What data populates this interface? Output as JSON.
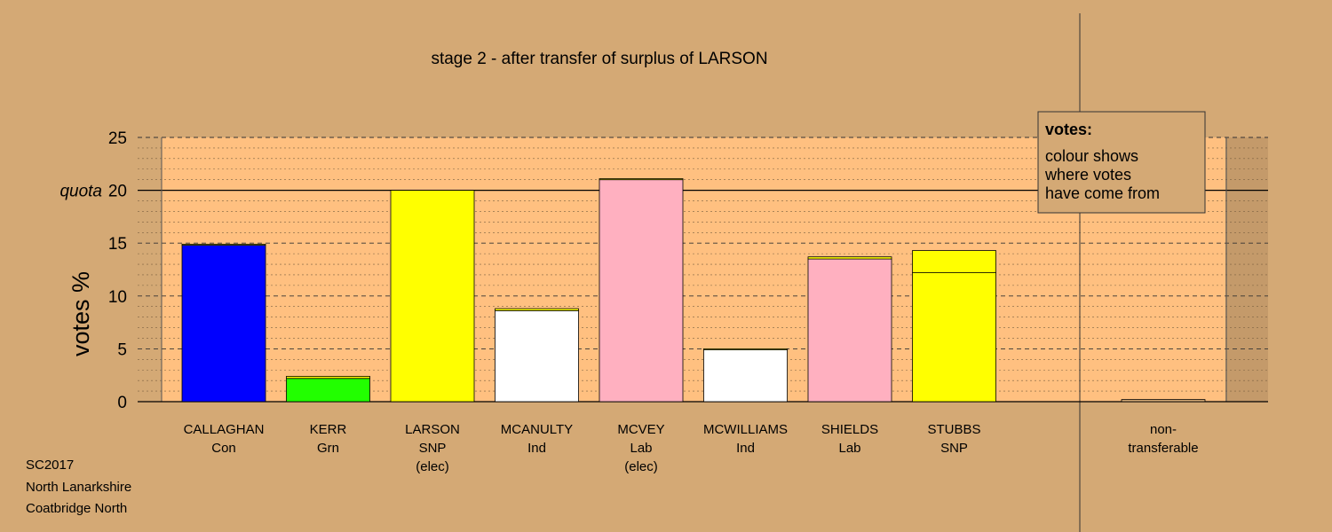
{
  "chart_data": {
    "type": "bar",
    "title": "stage 2 - after transfer of surplus of LARSON",
    "ylabel": "votes %",
    "ylim": [
      0,
      25
    ],
    "yticks": [
      0,
      5,
      10,
      15,
      20,
      25
    ],
    "quota": {
      "label": "quota",
      "value": 20
    },
    "categories": [
      {
        "name": "CALLAGHAN",
        "party": "Con",
        "status": ""
      },
      {
        "name": "KERR",
        "party": "Grn",
        "status": ""
      },
      {
        "name": "LARSON",
        "party": "SNP",
        "status": "(elec)"
      },
      {
        "name": "MCANULTY",
        "party": "Ind",
        "status": ""
      },
      {
        "name": "MCVEY",
        "party": "Lab",
        "status": "(elec)"
      },
      {
        "name": "MCWILLIAMS",
        "party": "Ind",
        "status": ""
      },
      {
        "name": "SHIELDS",
        "party": "Lab",
        "status": ""
      },
      {
        "name": "STUBBS",
        "party": "SNP",
        "status": ""
      }
    ],
    "bars": [
      {
        "segments": [
          {
            "value": 14.8,
            "color": "#0000ff"
          },
          {
            "value": 0.1,
            "color": "#ffff00"
          }
        ]
      },
      {
        "segments": [
          {
            "value": 2.2,
            "color": "#22ff00"
          },
          {
            "value": 0.2,
            "color": "#ffff00"
          }
        ]
      },
      {
        "segments": [
          {
            "value": 20.0,
            "color": "#ffff00"
          }
        ]
      },
      {
        "segments": [
          {
            "value": 8.6,
            "color": "#ffffff"
          },
          {
            "value": 0.2,
            "color": "#ffff00"
          }
        ]
      },
      {
        "segments": [
          {
            "value": 21.0,
            "color": "#ffb0c0"
          },
          {
            "value": 0.1,
            "color": "#ffff00"
          }
        ]
      },
      {
        "segments": [
          {
            "value": 4.9,
            "color": "#ffffff"
          },
          {
            "value": 0.1,
            "color": "#ffff00"
          }
        ]
      },
      {
        "segments": [
          {
            "value": 13.5,
            "color": "#ffb0c0"
          },
          {
            "value": 0.2,
            "color": "#ffff00"
          }
        ]
      },
      {
        "segments": [
          {
            "value": 12.2,
            "color": "#ffff00"
          },
          {
            "value": 2.1,
            "color": "#ffff00"
          }
        ]
      }
    ],
    "nontransferable": {
      "label_line1": "non-",
      "label_line2": "transferable",
      "value": 0.2,
      "color": "#d4a975"
    },
    "legend": {
      "title": "votes:",
      "lines": [
        "colour shows",
        "where votes",
        "have come from"
      ],
      "placement": "top-right"
    },
    "grid": true,
    "colors": {
      "background": "#d4a975",
      "plot_fill": "#ffc080"
    }
  },
  "footer": {
    "line1": "SC2017",
    "line2": "North Lanarkshire",
    "line3": "Coatbridge North"
  }
}
